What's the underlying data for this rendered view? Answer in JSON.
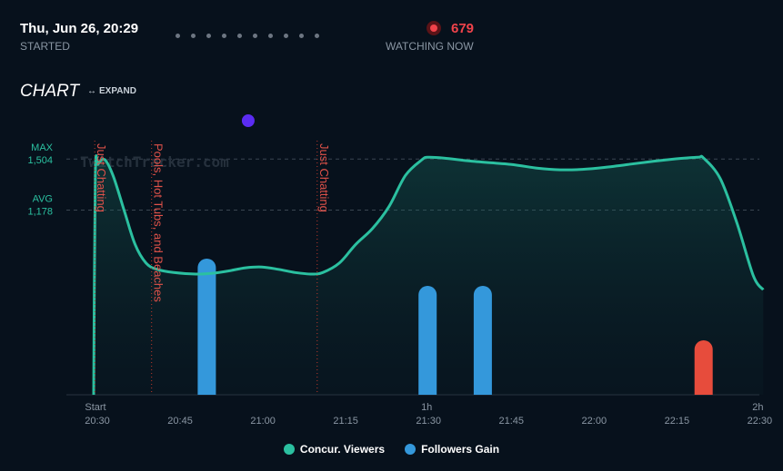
{
  "header": {
    "started_value": "Thu, Jun 26, 20:29",
    "started_label": "STARTED",
    "watching_value": "679",
    "watching_label": "WATCHING NOW"
  },
  "chart_section": {
    "title": "CHART",
    "expand_label": "EXPAND",
    "watermark": "TwitchTracker.com"
  },
  "chart_data": {
    "type": "line",
    "x_unit": "minutes since stream start (20:30)",
    "x_ticks": [
      {
        "at": 0,
        "top": "Start",
        "bottom": "20:30"
      },
      {
        "at": 15,
        "top": "",
        "bottom": "20:45"
      },
      {
        "at": 30,
        "top": "",
        "bottom": "21:00"
      },
      {
        "at": 45,
        "top": "",
        "bottom": "21:15"
      },
      {
        "at": 60,
        "top": "1h",
        "bottom": "21:30"
      },
      {
        "at": 75,
        "top": "",
        "bottom": "21:45"
      },
      {
        "at": 90,
        "top": "",
        "bottom": "22:00"
      },
      {
        "at": 105,
        "top": "",
        "bottom": "22:15"
      },
      {
        "at": 120,
        "top": "2h",
        "bottom": "22:30"
      }
    ],
    "xlim": [
      0,
      121
    ],
    "ylim": [
      0,
      1650
    ],
    "reference_lines": [
      {
        "label": "MAX",
        "value_label": "1,504",
        "value": 1504
      },
      {
        "label": "AVG",
        "value_label": "1,178",
        "value": 1178
      }
    ],
    "category_markers": [
      {
        "x": -0.3,
        "label": "Just Chatting"
      },
      {
        "x": 10,
        "label": "Pools, Hot Tubs, and Beaches"
      },
      {
        "x": 40,
        "label": "Just Chatting"
      }
    ],
    "series": [
      {
        "name": "Concur. Viewers",
        "color": "#2bc0a0",
        "points": [
          [
            -0.5,
            0
          ],
          [
            -0.2,
            1400
          ],
          [
            0.3,
            1470
          ],
          [
            1.5,
            1500
          ],
          [
            3,
            1400
          ],
          [
            5,
            1180
          ],
          [
            7,
            960
          ],
          [
            9,
            840
          ],
          [
            11,
            800
          ],
          [
            14,
            780
          ],
          [
            18,
            770
          ],
          [
            21,
            775
          ],
          [
            24,
            790
          ],
          [
            27,
            810
          ],
          [
            30,
            815
          ],
          [
            33,
            800
          ],
          [
            36,
            780
          ],
          [
            39,
            770
          ],
          [
            41,
            780
          ],
          [
            44,
            840
          ],
          [
            47,
            960
          ],
          [
            50,
            1060
          ],
          [
            53,
            1200
          ],
          [
            56,
            1400
          ],
          [
            59,
            1500
          ],
          [
            60,
            1515
          ],
          [
            63,
            1510
          ],
          [
            68,
            1490
          ],
          [
            75,
            1470
          ],
          [
            80,
            1445
          ],
          [
            84,
            1435
          ],
          [
            88,
            1438
          ],
          [
            92,
            1450
          ],
          [
            97,
            1472
          ],
          [
            101,
            1490
          ],
          [
            105,
            1505
          ],
          [
            109,
            1515
          ],
          [
            110,
            1510
          ],
          [
            113,
            1380
          ],
          [
            116,
            1100
          ],
          [
            119,
            760
          ],
          [
            120.8,
            670
          ]
        ]
      },
      {
        "name": "Followers Gain",
        "color": "#3498db",
        "type": "bar",
        "bars": [
          {
            "x": 20,
            "value": 3,
            "color": "#3498db"
          },
          {
            "x": 60,
            "value": 2.4,
            "color": "#3498db"
          },
          {
            "x": 70,
            "value": 2.4,
            "color": "#3498db"
          },
          {
            "x": 110,
            "value": 1.2,
            "color": "#e74c3c"
          }
        ],
        "ylim": [
          0,
          5.7
        ]
      }
    ],
    "event_marker": {
      "x": 27.5,
      "color": "#5b2cf2"
    }
  },
  "legend": {
    "items": [
      {
        "label": "Concur. Viewers",
        "color": "#2bc0a0"
      },
      {
        "label": "Followers Gain",
        "color": "#3498db"
      }
    ]
  }
}
